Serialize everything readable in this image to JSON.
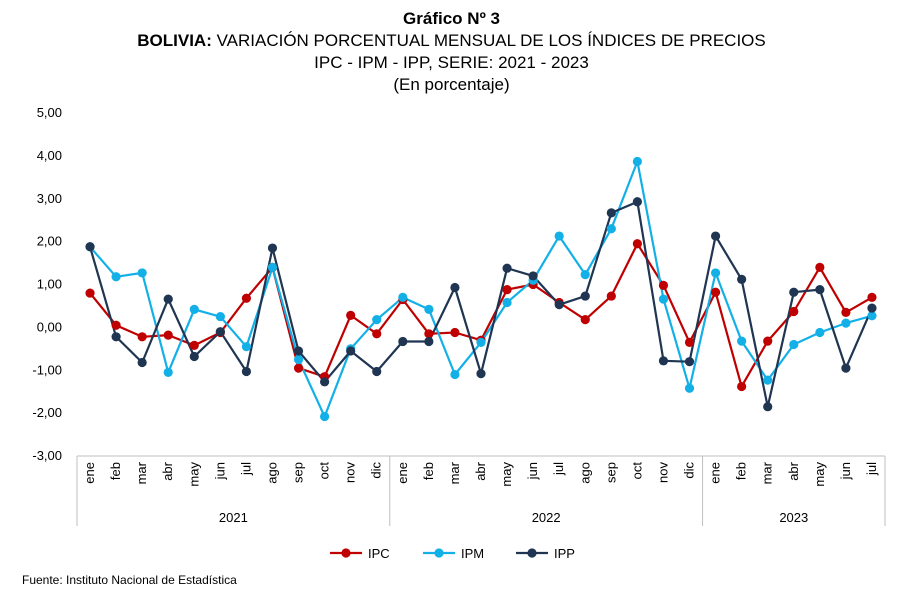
{
  "header": {
    "line1": "Gráfico Nº 3",
    "line2_bold": "BOLIVIA:",
    "line2_rest": " VARIACIÓN PORCENTUAL MENSUAL DE LOS ÍNDICES DE PRECIOS",
    "line3": "IPC - IPM - IPP, SERIE: 2021 - 2023",
    "line4": "(En porcentaje)"
  },
  "source": "Fuente: Instituto Nacional de Estadística",
  "chart_data": {
    "type": "line",
    "ylim": [
      -3,
      5
    ],
    "yticks": [
      "5,00",
      "4,00",
      "3,00",
      "2,00",
      "1,00",
      "0,00",
      "-1,00",
      "-2,00",
      "-3,00"
    ],
    "ytick_values": [
      5,
      4,
      3,
      2,
      1,
      0,
      -1,
      -2,
      -3
    ],
    "categories": [
      "ene",
      "feb",
      "mar",
      "abr",
      "may",
      "jun",
      "jul",
      "ago",
      "sep",
      "oct",
      "nov",
      "dic",
      "ene",
      "feb",
      "mar",
      "abr",
      "may",
      "jun",
      "jul",
      "ago",
      "sep",
      "oct",
      "nov",
      "dic",
      "ene",
      "feb",
      "mar",
      "abr",
      "may",
      "jun",
      "jul"
    ],
    "years": [
      {
        "label": "2021",
        "months": 12
      },
      {
        "label": "2022",
        "months": 12
      },
      {
        "label": "2023",
        "months": 7
      }
    ],
    "series": [
      {
        "name": "IPC",
        "color": "#c00000",
        "values": [
          0.8,
          0.05,
          -0.22,
          -0.18,
          -0.42,
          -0.12,
          0.68,
          1.4,
          -0.95,
          -1.15,
          0.28,
          -0.15,
          0.65,
          -0.15,
          -0.12,
          -0.3,
          0.88,
          1.0,
          0.58,
          0.18,
          0.73,
          1.95,
          0.98,
          -0.35,
          0.82,
          -1.38,
          -0.32,
          0.37,
          1.4,
          0.35,
          0.7
        ]
      },
      {
        "name": "IPM",
        "color": "#13b0e8",
        "values": [
          1.88,
          1.18,
          1.27,
          -1.05,
          0.42,
          0.25,
          -0.45,
          1.4,
          -0.75,
          -2.08,
          -0.5,
          0.18,
          0.7,
          0.42,
          -1.1,
          -0.35,
          0.58,
          1.1,
          2.13,
          1.23,
          2.3,
          3.87,
          0.66,
          -1.42,
          1.27,
          -0.32,
          -1.23,
          -0.4,
          -0.12,
          0.1,
          0.27
        ]
      },
      {
        "name": "IPP",
        "color": "#1f3552",
        "values": [
          1.88,
          -0.22,
          -0.82,
          0.66,
          -0.68,
          -0.1,
          -1.03,
          1.85,
          -0.55,
          -1.27,
          -0.55,
          -1.03,
          -0.33,
          -0.33,
          0.93,
          -1.08,
          1.38,
          1.2,
          0.53,
          0.73,
          2.67,
          2.93,
          -0.78,
          -0.8,
          2.13,
          1.12,
          -1.85,
          0.82,
          0.88,
          -0.95,
          0.45
        ]
      }
    ],
    "legend": {
      "placement": "bottom-center",
      "entries": [
        "IPC",
        "IPM",
        "IPP"
      ]
    },
    "grid": false
  }
}
